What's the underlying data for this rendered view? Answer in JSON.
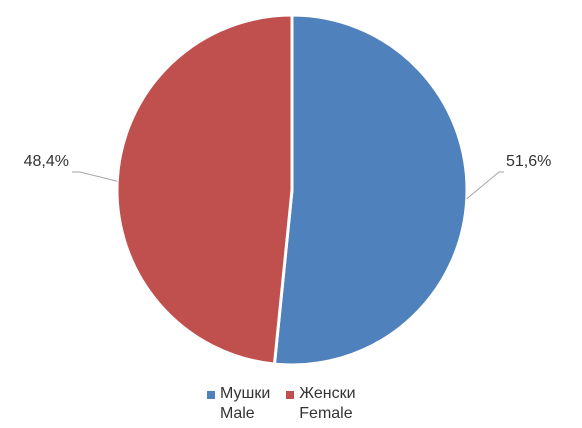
{
  "chart_data": {
    "type": "pie",
    "title": "",
    "series": [
      {
        "name": "",
        "slices": [
          {
            "label_primary": "Мушки",
            "label_secondary": "Male",
            "value": 51.6,
            "value_label": "51,6%",
            "color": "#4F81BD"
          },
          {
            "label_primary": "Женски",
            "label_secondary": "Female",
            "value": 48.4,
            "value_label": "48,4%",
            "color": "#C0504D"
          }
        ]
      }
    ],
    "legend_position": "bottom",
    "start_angle": "12 o'clock",
    "direction": "clockwise"
  }
}
